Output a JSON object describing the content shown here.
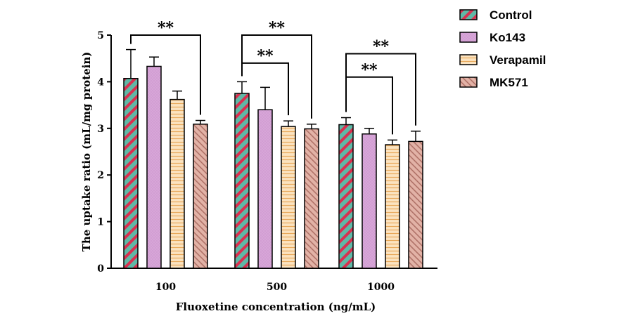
{
  "chart_data": {
    "type": "bar",
    "title": "",
    "xlabel": "Fluoxetine concentration (ng/mL)",
    "ylabel": "The uptake ratio (mL/mg protein)",
    "ylim": [
      0,
      5
    ],
    "yticks": [
      "0",
      "1",
      "2",
      "3",
      "4",
      "5"
    ],
    "categories": [
      "100",
      "500",
      "1000"
    ],
    "series": [
      {
        "name": "Control",
        "values": [
          4.07,
          3.75,
          3.08
        ],
        "errors": [
          0.62,
          0.25,
          0.15
        ],
        "color": "#5fb8a6",
        "stripe": "#d9304f"
      },
      {
        "name": "Ko143",
        "values": [
          4.33,
          3.4,
          2.88
        ],
        "errors": [
          0.2,
          0.48,
          0.12
        ],
        "color": "#d7a6d8",
        "stripe": "#c48ac8"
      },
      {
        "name": "Verapamil",
        "values": [
          3.62,
          3.04,
          2.65
        ],
        "errors": [
          0.18,
          0.12,
          0.1
        ],
        "color": "#fbe3c0",
        "stripe": "#e8a85a"
      },
      {
        "name": "MK571",
        "values": [
          3.09,
          2.99,
          2.72
        ],
        "errors": [
          0.08,
          0.1,
          0.22
        ],
        "color": "#e2b2a6",
        "stripe": "#a96a60"
      }
    ],
    "annotations": [
      {
        "text": "**",
        "category": 0,
        "from": "Control",
        "to": "MK571",
        "level": 5.0
      },
      {
        "text": "**",
        "category": 1,
        "from": "Control",
        "to": "MK571",
        "level": 5.0
      },
      {
        "text": "**",
        "category": 1,
        "from": "Control",
        "to": "Verapamil",
        "level": 4.4
      },
      {
        "text": "**",
        "category": 2,
        "from": "Control",
        "to": "MK571",
        "level": 4.6
      },
      {
        "text": "**",
        "category": 2,
        "from": "Control",
        "to": "Verapamil",
        "level": 4.1
      }
    ],
    "legend": "top-right"
  }
}
